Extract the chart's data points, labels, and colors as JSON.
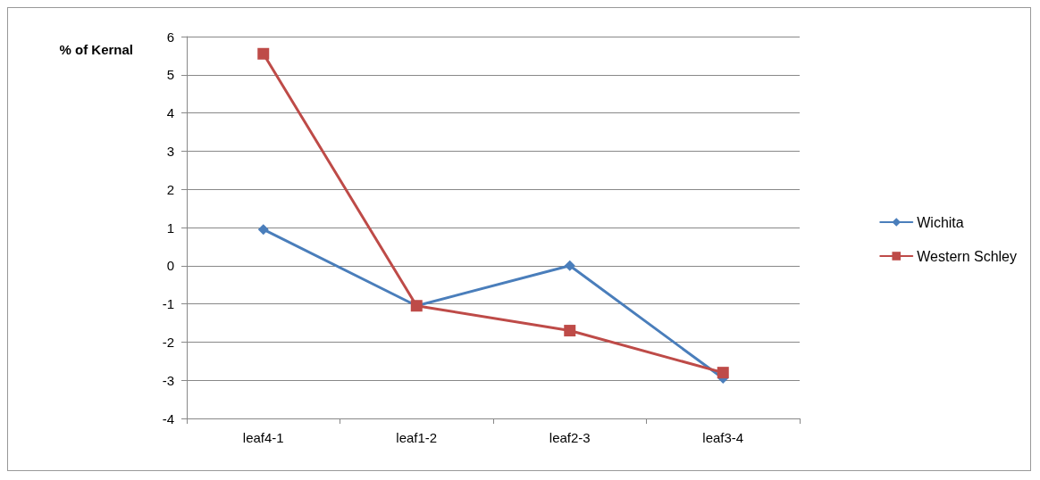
{
  "chart_data": {
    "type": "line",
    "ylabel": "% of Kernal",
    "categories": [
      "leaf4-1",
      "leaf1-2",
      "leaf2-3",
      "leaf3-4"
    ],
    "series": [
      {
        "name": "Wichita",
        "color": "#4a7ebb",
        "marker": "diamond",
        "values": [
          0.95,
          -1.05,
          0,
          -2.95
        ]
      },
      {
        "name": "Western Schley",
        "color": "#be4b48",
        "marker": "square",
        "values": [
          5.55,
          -1.05,
          -1.7,
          -2.8
        ]
      }
    ],
    "ylim": [
      -4,
      6
    ],
    "yticks": [
      -4,
      -3,
      -2,
      -1,
      0,
      1,
      2,
      3,
      4,
      5,
      6
    ],
    "grid": "y",
    "legend": "right",
    "line_style": "solid"
  }
}
